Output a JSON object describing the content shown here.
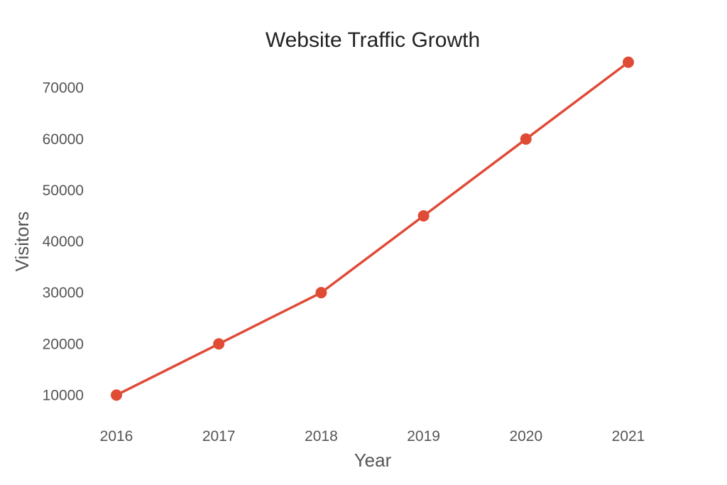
{
  "chart_data": {
    "type": "line",
    "title": "Website Traffic Growth",
    "xlabel": "Year",
    "ylabel": "Visitors",
    "x": [
      "2016",
      "2017",
      "2018",
      "2019",
      "2020",
      "2021"
    ],
    "series": [
      {
        "values": [
          10000,
          20000,
          30000,
          45000,
          60000,
          75000
        ],
        "color": "#e04b35"
      }
    ],
    "yticks": [
      10000,
      20000,
      30000,
      40000,
      50000,
      60000,
      70000
    ],
    "ylim": [
      7000,
      78000
    ],
    "grid": false,
    "legend": "none",
    "markers": true
  }
}
